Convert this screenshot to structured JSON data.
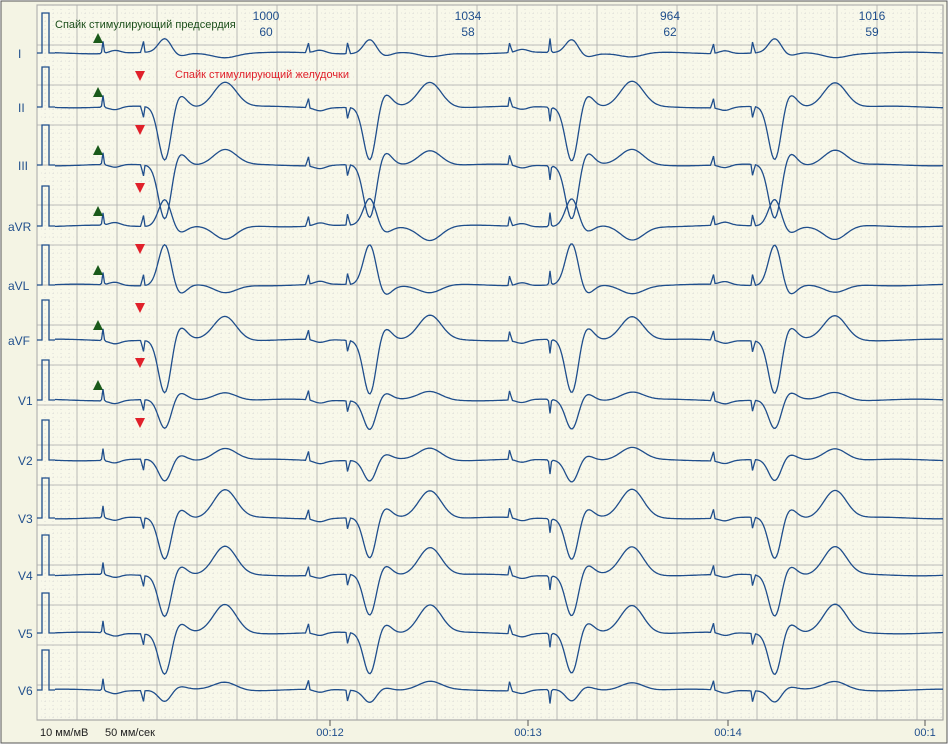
{
  "annotations": {
    "atrial": "Спайк стимулирующий предсердия",
    "ventricular": "Спайк стимулирующий желудочки"
  },
  "leads": [
    "I",
    "II",
    "III",
    "aVR",
    "aVL",
    "aVF",
    "V1",
    "V2",
    "V3",
    "V4",
    "V5",
    "V6"
  ],
  "intervals": [
    {
      "rr": "1000",
      "hr": "60"
    },
    {
      "rr": "1034",
      "hr": "58"
    },
    {
      "rr": "964",
      "hr": "62"
    },
    {
      "rr": "1016",
      "hr": "59"
    }
  ],
  "time_labels": [
    "00:12",
    "00:13",
    "00:14",
    "00:1"
  ],
  "footer": {
    "gain": "10 мм/мВ",
    "speed": "50 мм/сек"
  }
}
